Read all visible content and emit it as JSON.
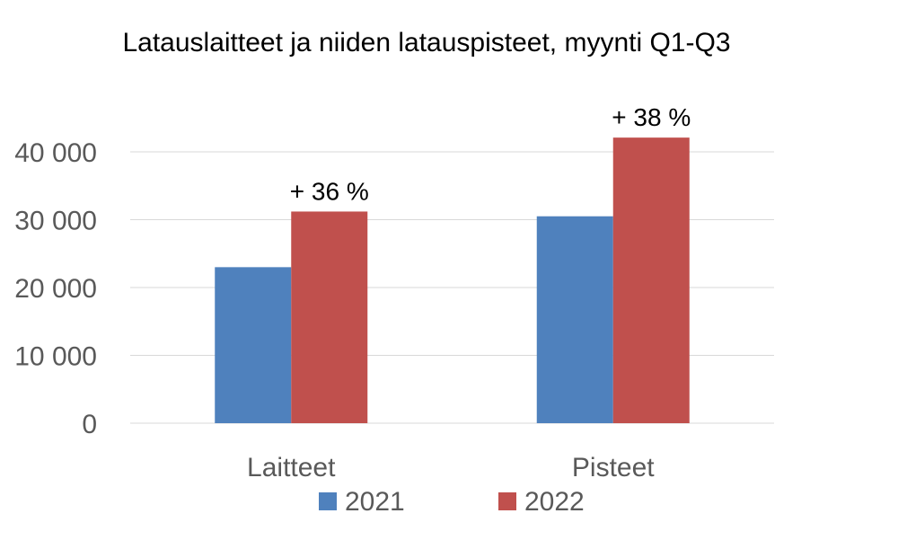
{
  "chart_data": {
    "type": "bar",
    "title": "Latauslaitteet ja niiden latauspisteet, myynti Q1-Q3",
    "categories": [
      "Laitteet",
      "Pisteet"
    ],
    "series": [
      {
        "name": "2021",
        "values": [
          23000,
          30500
        ],
        "color": "#4f81bd"
      },
      {
        "name": "2022",
        "values": [
          31200,
          42100
        ],
        "color": "#c0504d"
      }
    ],
    "data_labels": [
      "+ 36 %",
      "+ 38 %"
    ],
    "yticks": [
      0,
      10000,
      20000,
      30000,
      40000
    ],
    "ytick_labels": [
      "0",
      "10 000",
      "20 000",
      "30 000",
      "40 000"
    ],
    "ylim": [
      0,
      40000
    ],
    "xlabel": "",
    "ylabel": "",
    "grid": true,
    "legend_position": "bottom"
  }
}
